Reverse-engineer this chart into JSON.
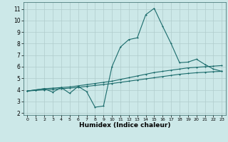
{
  "xlabel": "Humidex (Indice chaleur)",
  "bg_color": "#cce8e8",
  "grid_color": "#b0cccc",
  "line_color": "#1a6b6b",
  "xlim": [
    -0.5,
    23.5
  ],
  "ylim": [
    1.8,
    11.6
  ],
  "xticks": [
    0,
    1,
    2,
    3,
    4,
    5,
    6,
    7,
    8,
    9,
    10,
    11,
    12,
    13,
    14,
    15,
    16,
    17,
    18,
    19,
    20,
    21,
    22,
    23
  ],
  "yticks": [
    2,
    3,
    4,
    5,
    6,
    7,
    8,
    9,
    10,
    11
  ],
  "line1_x": [
    0,
    1,
    2,
    3,
    4,
    5,
    6,
    7,
    8,
    9,
    10,
    11,
    12,
    13,
    14,
    15,
    16,
    17,
    18,
    19,
    20,
    21,
    22,
    23
  ],
  "line1_y": [
    3.9,
    4.0,
    4.1,
    3.8,
    4.2,
    3.7,
    4.3,
    3.85,
    2.5,
    2.6,
    6.0,
    7.7,
    8.35,
    8.5,
    10.5,
    11.05,
    9.5,
    8.0,
    6.35,
    6.4,
    6.65,
    6.2,
    5.8,
    5.6
  ],
  "line2_x": [
    0,
    1,
    2,
    3,
    4,
    5,
    6,
    7,
    8,
    9,
    10,
    11,
    12,
    13,
    14,
    15,
    16,
    17,
    18,
    19,
    20,
    21,
    22,
    23
  ],
  "line2_y": [
    3.9,
    4.0,
    4.1,
    4.15,
    4.2,
    4.25,
    4.35,
    4.45,
    4.55,
    4.65,
    4.75,
    4.9,
    5.05,
    5.2,
    5.35,
    5.5,
    5.6,
    5.7,
    5.8,
    5.9,
    5.95,
    6.0,
    6.05,
    6.1
  ],
  "line3_x": [
    0,
    1,
    2,
    3,
    4,
    5,
    6,
    7,
    8,
    9,
    10,
    11,
    12,
    13,
    14,
    15,
    16,
    17,
    18,
    19,
    20,
    21,
    22,
    23
  ],
  "line3_y": [
    3.9,
    3.95,
    4.0,
    4.05,
    4.1,
    4.15,
    4.22,
    4.3,
    4.38,
    4.46,
    4.55,
    4.65,
    4.75,
    4.85,
    4.95,
    5.05,
    5.15,
    5.25,
    5.35,
    5.42,
    5.48,
    5.52,
    5.57,
    5.6
  ]
}
